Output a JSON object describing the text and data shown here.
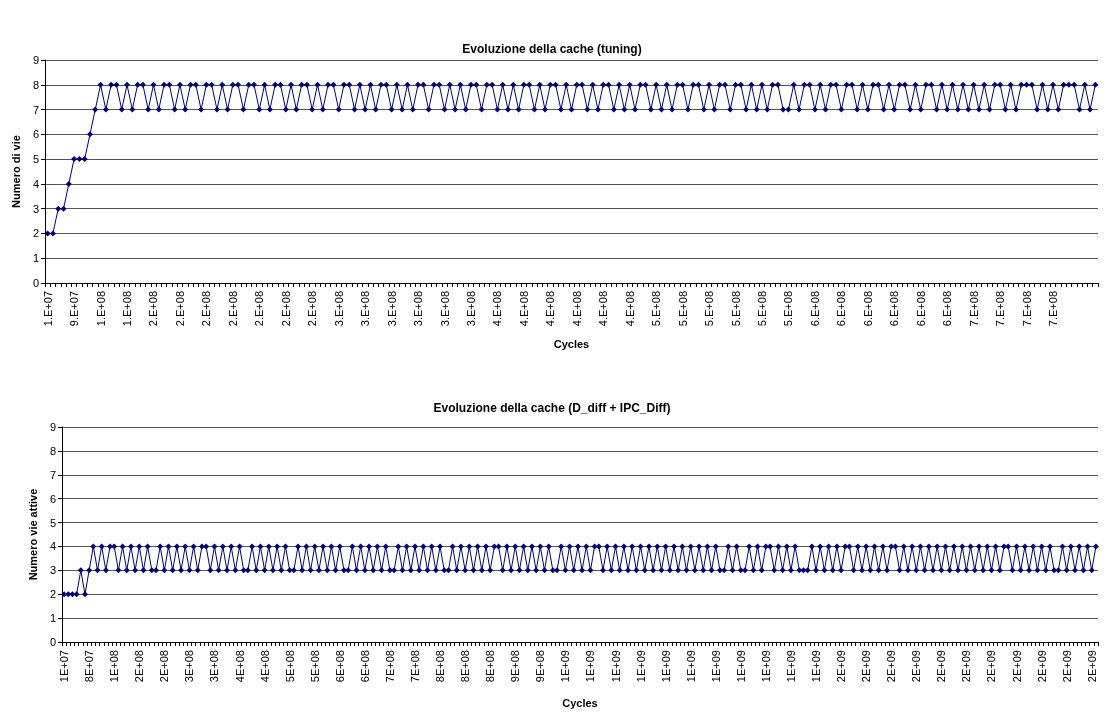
{
  "chart_data": [
    {
      "type": "line",
      "title": "Evoluzione della cache (tuning)",
      "xlabel": "Cycles",
      "ylabel": "Numero di vie",
      "categories": [
        "1.E+07",
        null,
        null,
        null,
        null,
        "9.E+07",
        null,
        null,
        null,
        null,
        "1.E+08",
        null,
        null,
        null,
        null,
        "1.E+08",
        null,
        null,
        null,
        null,
        "2.E+08",
        null,
        null,
        null,
        null,
        "2.E+08",
        null,
        null,
        null,
        null,
        "2.E+08",
        null,
        null,
        null,
        null,
        "2.E+08",
        null,
        null,
        null,
        null,
        "2.E+08",
        null,
        null,
        null,
        null,
        "2.E+08",
        null,
        null,
        null,
        null,
        "2.E+08",
        null,
        null,
        null,
        null,
        "3.E+08",
        null,
        null,
        null,
        null,
        "3.E+08",
        null,
        null,
        null,
        null,
        "3.E+08",
        null,
        null,
        null,
        null,
        "3.E+08",
        null,
        null,
        null,
        null,
        "3.E+08",
        null,
        null,
        null,
        null,
        "3.E+08",
        null,
        null,
        null,
        null,
        "4.E+08",
        null,
        null,
        null,
        null,
        "4.E+08",
        null,
        null,
        null,
        null,
        "4.E+08",
        null,
        null,
        null,
        null,
        "4.E+08",
        null,
        null,
        null,
        null,
        "4.E+08",
        null,
        null,
        null,
        null,
        "4.E+08",
        null,
        null,
        null,
        null,
        "5.E+08",
        null,
        null,
        null,
        null,
        "5.E+08",
        null,
        null,
        null,
        null,
        "5.E+08",
        null,
        null,
        null,
        null,
        "5.E+08",
        null,
        null,
        null,
        null,
        "5.E+08",
        null,
        null,
        null,
        null,
        "5.E+08",
        null,
        null,
        null,
        null,
        "6.E+08",
        null,
        null,
        null,
        null,
        "6.E+08",
        null,
        null,
        null,
        null,
        "6.E+08",
        null,
        null,
        null,
        null,
        "6.E+08",
        null,
        null,
        null,
        null,
        "6.E+08",
        null,
        null,
        null,
        null,
        "6.E+08",
        null,
        null,
        null,
        null,
        "7.E+08",
        null,
        null,
        null,
        null,
        "7.E+08",
        null,
        null,
        null,
        null,
        "7.E+08",
        null,
        null,
        null,
        null,
        "7.E+08",
        null,
        null,
        null,
        null,
        null,
        null,
        null,
        null
      ],
      "series": [
        {
          "color": "#000080",
          "values": [
            2,
            2,
            3,
            3,
            4,
            5,
            5,
            5,
            6,
            7,
            8,
            7,
            8,
            8,
            7,
            8,
            7,
            8,
            8,
            7,
            8,
            7,
            8,
            8,
            7,
            8,
            7,
            8,
            8,
            7,
            8,
            8,
            7,
            8,
            7,
            8,
            8,
            7,
            8,
            8,
            7,
            8,
            7,
            8,
            8,
            7,
            8,
            7,
            8,
            8,
            7,
            8,
            7,
            8,
            8,
            7,
            8,
            8,
            7,
            8,
            7,
            8,
            7,
            8,
            8,
            7,
            8,
            7,
            8,
            7,
            8,
            8,
            7,
            8,
            8,
            7,
            8,
            7,
            8,
            7,
            8,
            8,
            7,
            8,
            8,
            7,
            8,
            7,
            8,
            7,
            8,
            8,
            7,
            8,
            7,
            8,
            8,
            7,
            8,
            7,
            8,
            8,
            7,
            8,
            7,
            8,
            8,
            7,
            8,
            7,
            8,
            7,
            8,
            8,
            7,
            8,
            7,
            8,
            7,
            8,
            8,
            7,
            8,
            8,
            7,
            8,
            7,
            8,
            8,
            7,
            8,
            8,
            7,
            8,
            7,
            8,
            7,
            8,
            8,
            7,
            7,
            8,
            7,
            8,
            8,
            7,
            8,
            7,
            8,
            8,
            7,
            8,
            8,
            7,
            8,
            7,
            8,
            8,
            7,
            8,
            7,
            8,
            8,
            7,
            8,
            7,
            8,
            8,
            7,
            8,
            7,
            8,
            7,
            8,
            7,
            8,
            7,
            8,
            7,
            8,
            8,
            7,
            8,
            7,
            8,
            8,
            8,
            7,
            8,
            7,
            8,
            7,
            8,
            8,
            8,
            7,
            8,
            7,
            8
          ]
        }
      ],
      "ylim": [
        0,
        9
      ],
      "yticks": [
        0,
        1,
        2,
        3,
        4,
        5,
        6,
        7,
        8,
        9
      ],
      "grid": "y",
      "marker": "diamond"
    },
    {
      "type": "line",
      "title": "Evoluzione della cache (D_diff + IPC_Diff)",
      "xlabel": "Cycles",
      "ylabel": "Numero vie attive",
      "categories": [
        "1E+07",
        null,
        null,
        null,
        null,
        null,
        "8E+07",
        null,
        null,
        null,
        null,
        null,
        "1E+08",
        null,
        null,
        null,
        null,
        null,
        "2E+08",
        null,
        null,
        null,
        null,
        null,
        "2E+08",
        null,
        null,
        null,
        null,
        null,
        "3E+08",
        null,
        null,
        null,
        null,
        null,
        "3E+08",
        null,
        null,
        null,
        null,
        null,
        "4E+08",
        null,
        null,
        null,
        null,
        null,
        "4E+08",
        null,
        null,
        null,
        null,
        null,
        "5E+08",
        null,
        null,
        null,
        null,
        null,
        "5E+08",
        null,
        null,
        null,
        null,
        null,
        "6E+08",
        null,
        null,
        null,
        null,
        null,
        "6E+08",
        null,
        null,
        null,
        null,
        null,
        "7E+08",
        null,
        null,
        null,
        null,
        null,
        "7E+08",
        null,
        null,
        null,
        null,
        null,
        "8E+08",
        null,
        null,
        null,
        null,
        null,
        "8E+08",
        null,
        null,
        null,
        null,
        null,
        "8E+08",
        null,
        null,
        null,
        null,
        null,
        "9E+08",
        null,
        null,
        null,
        null,
        null,
        "9E+08",
        null,
        null,
        null,
        null,
        null,
        "1E+09",
        null,
        null,
        null,
        null,
        null,
        "1E+09",
        null,
        null,
        null,
        null,
        null,
        "1E+09",
        null,
        null,
        null,
        null,
        null,
        "1E+09",
        null,
        null,
        null,
        null,
        null,
        "1E+09",
        null,
        null,
        null,
        null,
        null,
        "1E+09",
        null,
        null,
        null,
        null,
        null,
        "1E+09",
        null,
        null,
        null,
        null,
        null,
        "1E+09",
        null,
        null,
        null,
        null,
        null,
        "1E+09",
        null,
        null,
        null,
        null,
        null,
        "1E+09",
        null,
        null,
        null,
        null,
        null,
        "1E+09",
        null,
        null,
        null,
        null,
        null,
        "2E+09",
        null,
        null,
        null,
        null,
        null,
        "2E+09",
        null,
        null,
        null,
        null,
        null,
        "2E+09",
        null,
        null,
        null,
        null,
        null,
        "2E+09",
        null,
        null,
        null,
        null,
        null,
        "2E+09",
        null,
        null,
        null,
        null,
        null,
        "2E+09",
        null,
        null,
        null,
        null,
        null,
        "2E+09",
        null,
        null,
        null,
        null,
        null,
        "2E+09",
        null,
        null,
        null,
        null,
        null,
        "2E+09",
        null,
        null,
        null,
        null,
        null,
        "2E+09",
        null,
        null,
        null,
        null,
        null,
        "2E+09",
        null
      ],
      "series": [
        {
          "color": "#000080",
          "values": [
            2,
            2,
            2,
            2,
            3,
            2,
            3,
            4,
            3,
            4,
            3,
            4,
            4,
            3,
            4,
            3,
            4,
            3,
            4,
            3,
            4,
            3,
            3,
            4,
            3,
            4,
            3,
            4,
            3,
            4,
            3,
            4,
            3,
            4,
            4,
            3,
            4,
            3,
            4,
            3,
            4,
            3,
            4,
            3,
            3,
            4,
            3,
            4,
            3,
            4,
            3,
            4,
            3,
            4,
            3,
            3,
            4,
            3,
            4,
            3,
            4,
            3,
            4,
            3,
            4,
            3,
            4,
            3,
            3,
            4,
            3,
            4,
            3,
            4,
            3,
            4,
            3,
            4,
            3,
            3,
            4,
            3,
            4,
            3,
            4,
            3,
            4,
            3,
            4,
            3,
            4,
            3,
            3,
            4,
            3,
            4,
            3,
            4,
            3,
            4,
            3,
            4,
            3,
            4,
            4,
            3,
            4,
            3,
            4,
            3,
            4,
            3,
            4,
            3,
            4,
            3,
            4,
            3,
            3,
            4,
            3,
            4,
            3,
            4,
            3,
            4,
            3,
            4,
            4,
            3,
            4,
            3,
            4,
            3,
            4,
            3,
            4,
            3,
            4,
            3,
            4,
            3,
            4,
            3,
            4,
            3,
            4,
            3,
            4,
            3,
            4,
            3,
            4,
            3,
            4,
            3,
            4,
            3,
            3,
            4,
            3,
            4,
            3,
            3,
            4,
            3,
            4,
            3,
            4,
            4,
            3,
            4,
            3,
            4,
            3,
            4,
            3,
            3,
            3,
            4,
            3,
            4,
            3,
            4,
            3,
            4,
            3,
            4,
            4,
            3,
            4,
            3,
            4,
            3,
            4,
            3,
            4,
            3,
            4,
            4,
            3,
            4,
            3,
            4,
            3,
            4,
            3,
            4,
            3,
            4,
            3,
            4,
            3,
            4,
            3,
            4,
            3,
            4,
            3,
            4,
            3,
            4,
            3,
            4,
            3,
            4,
            4,
            3,
            4,
            3,
            4,
            3,
            4,
            3,
            4,
            3,
            4,
            3,
            3,
            4,
            3,
            4,
            3,
            4,
            3,
            4,
            3,
            4
          ]
        }
      ],
      "ylim": [
        0,
        9
      ],
      "yticks": [
        0,
        1,
        2,
        3,
        4,
        5,
        6,
        7,
        8,
        9
      ],
      "grid": "y",
      "marker": "diamond"
    }
  ]
}
